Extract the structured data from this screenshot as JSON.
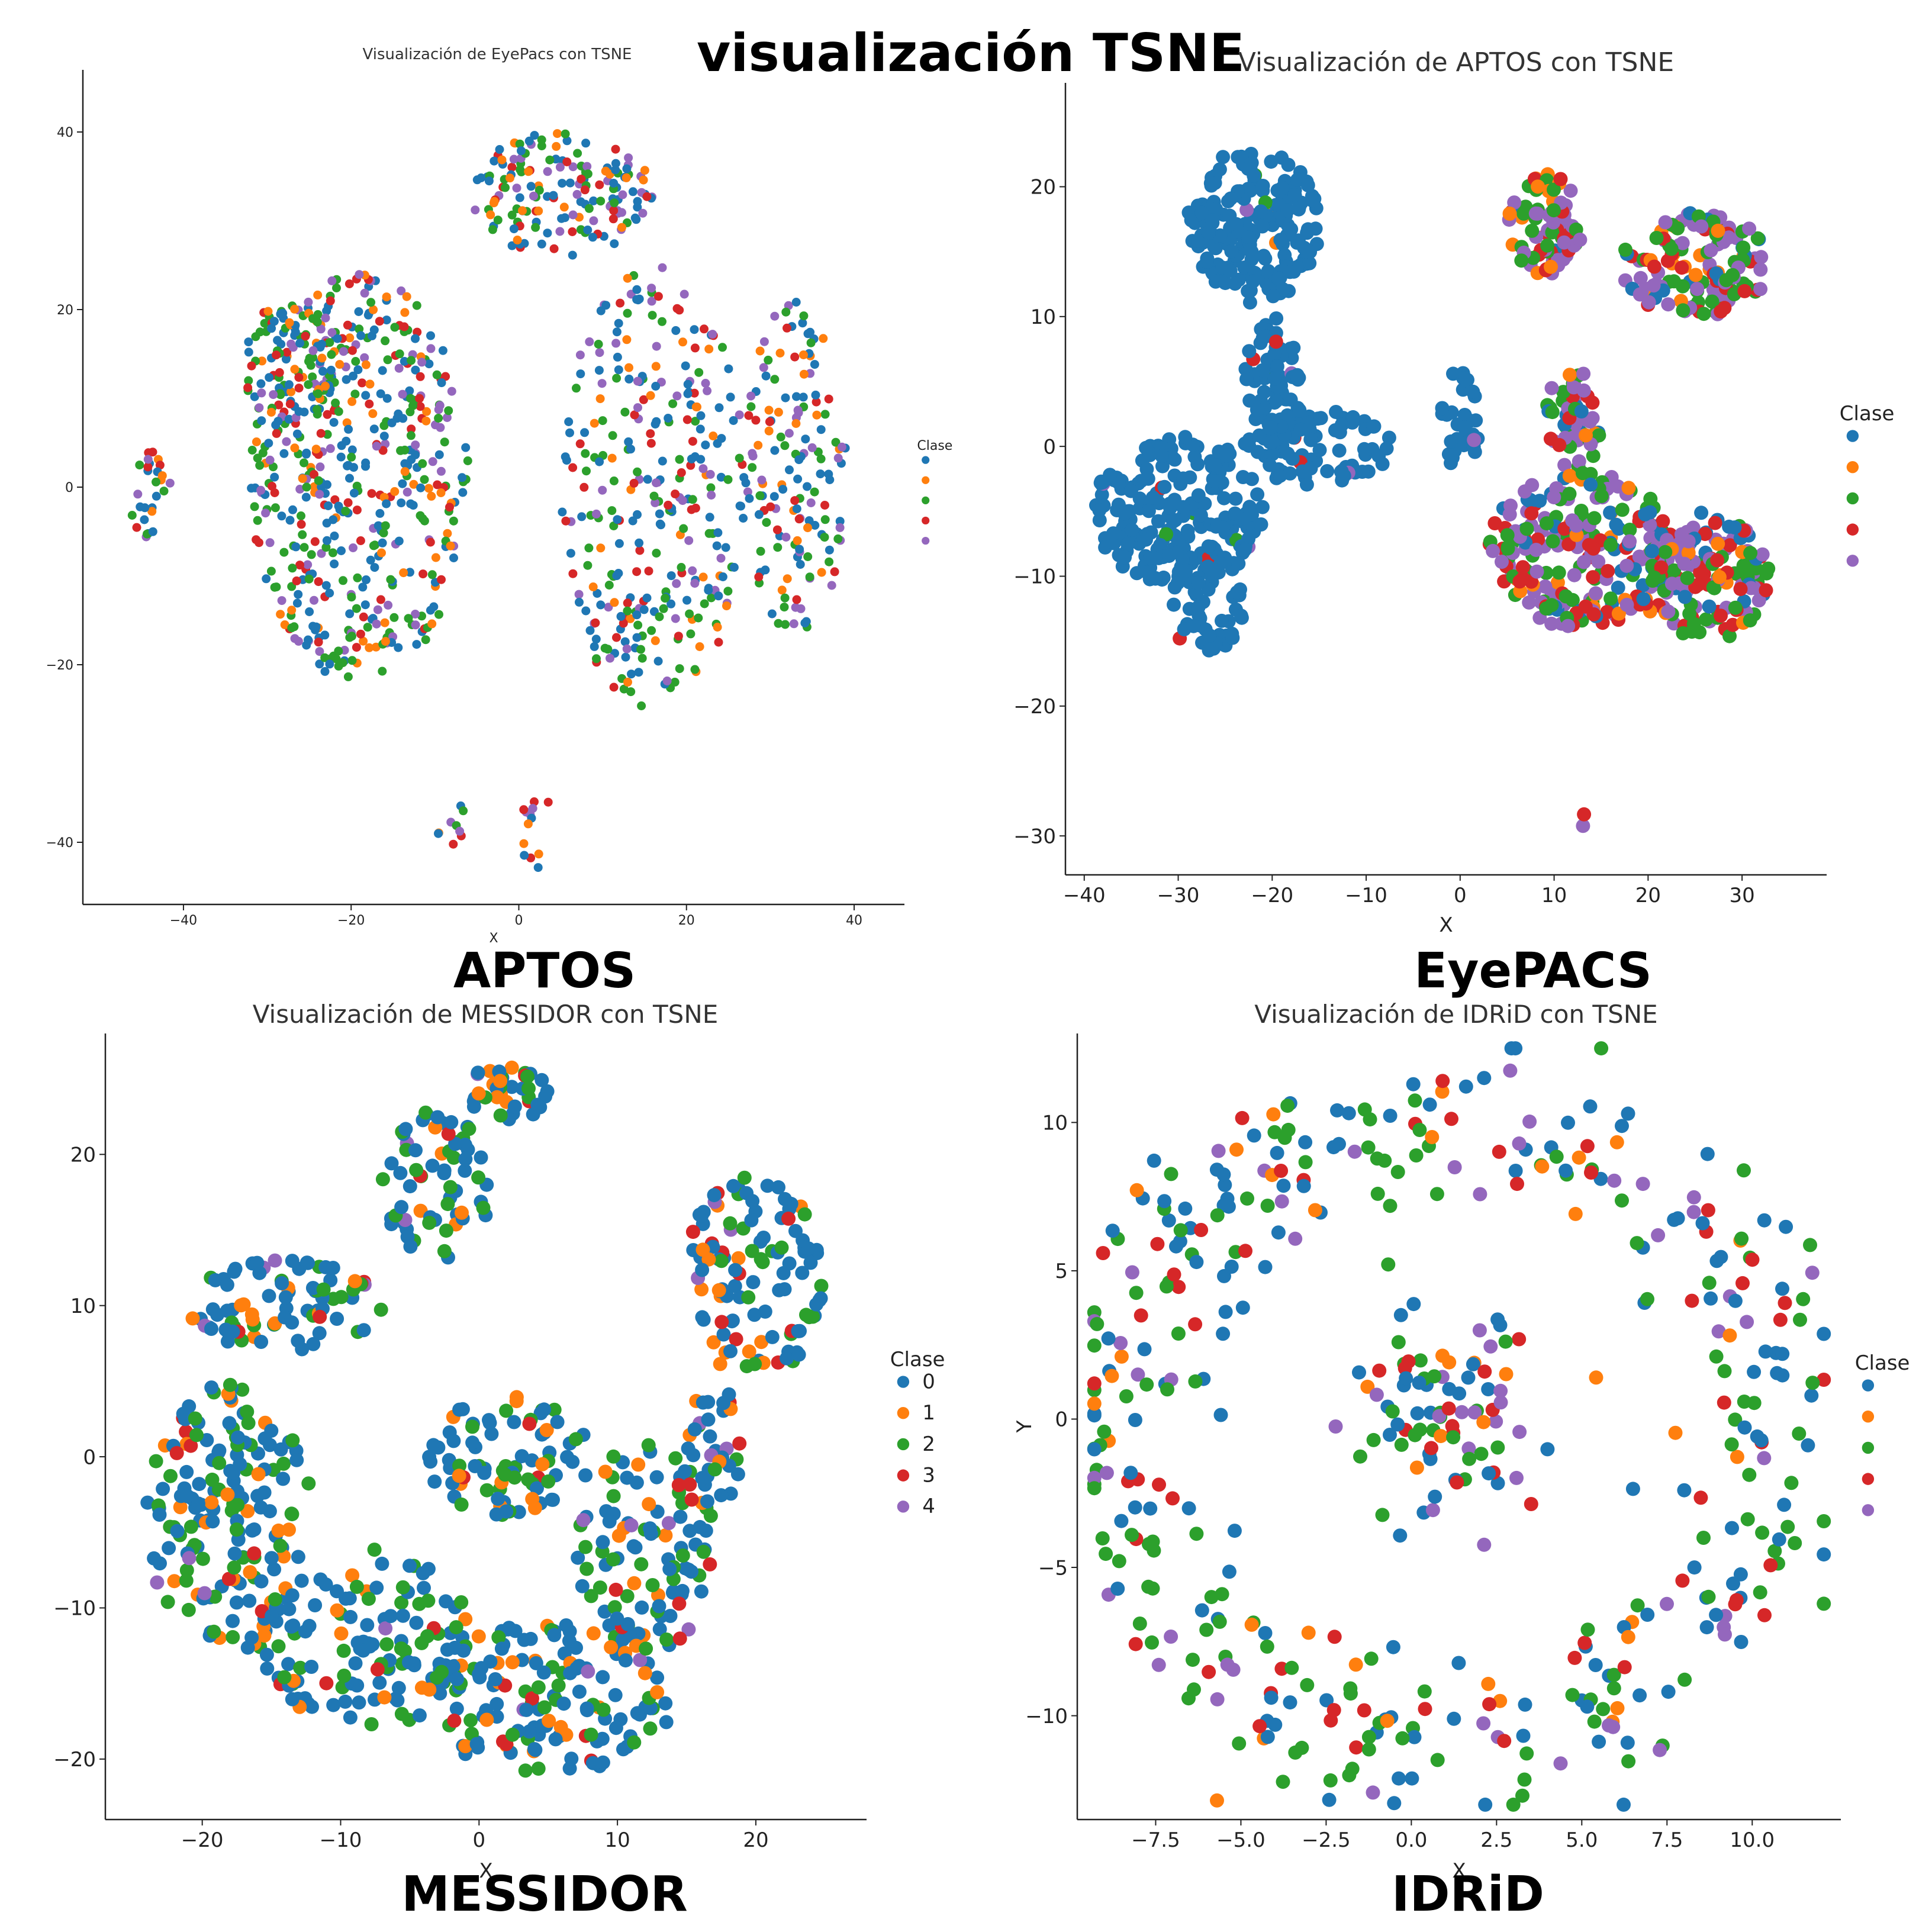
{
  "page": {
    "main_title": "visualización TSNE",
    "captions": [
      "APTOS",
      "EyePACS",
      "MESSIDOR",
      "IDRiD"
    ]
  },
  "class_colors": [
    "#1f77b4",
    "#ff7f0e",
    "#2ca02c",
    "#d62728",
    "#9467bd"
  ],
  "chart_data": [
    {
      "id": "eyepacs",
      "type": "scatter",
      "title": "Visualización de EyePacs con TSNE",
      "xlabel": "X",
      "ylabel": "",
      "xlim": [
        -52,
        46
      ],
      "ylim": [
        -47,
        47
      ],
      "xticks": [
        -40,
        -20,
        0,
        20,
        40
      ],
      "yticks": [
        -40,
        -20,
        0,
        20,
        40
      ],
      "legend": {
        "title": "Clase",
        "placement": "right",
        "labels": [
          "",
          "",
          "",
          "",
          ""
        ]
      },
      "points_per_class": [
        420,
        150,
        330,
        170,
        200
      ],
      "clusters": [
        {
          "cx": -19,
          "cy": 1,
          "rx": 13,
          "ry": 23,
          "w": 5
        },
        {
          "cx": -27,
          "cy": 14,
          "rx": 6,
          "ry": 7,
          "w": 1
        },
        {
          "cx": 16,
          "cy": 0,
          "rx": 11,
          "ry": 25,
          "w": 3
        },
        {
          "cx": 33,
          "cy": 2,
          "rx": 6,
          "ry": 19,
          "w": 1.5
        },
        {
          "cx": 5,
          "cy": 33,
          "rx": 11,
          "ry": 7,
          "w": 1.5
        },
        {
          "cx": -44,
          "cy": 0,
          "rx": 2.5,
          "ry": 6,
          "w": 0.3
        },
        {
          "cx": -8,
          "cy": -38,
          "rx": 2,
          "ry": 2.5,
          "w": 0.08
        },
        {
          "cx": 3,
          "cy": -37,
          "rx": 3,
          "ry": 2,
          "w": 0.08
        },
        {
          "cx": 2,
          "cy": -41,
          "rx": 2,
          "ry": 2,
          "w": 0.06
        }
      ]
    },
    {
      "id": "aptos",
      "type": "scatter",
      "title": "Visualización de APTOS con TSNE",
      "xlabel": "X",
      "ylabel": "",
      "xlim": [
        -42,
        39
      ],
      "ylim": [
        -33,
        28
      ],
      "xticks": [
        -40,
        -30,
        -20,
        -10,
        0,
        10,
        20,
        30
      ],
      "yticks": [
        -30,
        -20,
        -10,
        0,
        10,
        20
      ],
      "legend": {
        "title": "Clase",
        "placement": "right",
        "labels": [
          "",
          "",
          "",
          "",
          ""
        ]
      },
      "points_per_class": [
        700,
        60,
        190,
        130,
        230
      ],
      "clusters": [
        {
          "cx": -22,
          "cy": 17,
          "rx": 7,
          "ry": 6,
          "w": 2,
          "bias": 0
        },
        {
          "cx": -20,
          "cy": 5,
          "rx": 3,
          "ry": 5,
          "w": 0.6,
          "bias": 0
        },
        {
          "cx": -30,
          "cy": -5,
          "rx": 9,
          "ry": 6,
          "w": 2,
          "bias": 0
        },
        {
          "cx": -15,
          "cy": 0,
          "rx": 8,
          "ry": 3,
          "w": 1,
          "bias": 0
        },
        {
          "cx": -27,
          "cy": -12,
          "rx": 4,
          "ry": 4,
          "w": 0.6,
          "bias": 0
        },
        {
          "cx": 0,
          "cy": 2,
          "rx": 2,
          "ry": 4,
          "w": 0.3,
          "bias": 0
        },
        {
          "cx": 13,
          "cy": -8,
          "rx": 10,
          "ry": 6,
          "w": 2.5,
          "bias": 1
        },
        {
          "cx": 26,
          "cy": -10,
          "rx": 7,
          "ry": 5,
          "w": 1.5,
          "bias": 1
        },
        {
          "cx": 25,
          "cy": 14,
          "rx": 8,
          "ry": 4,
          "w": 1.5,
          "bias": 1
        },
        {
          "cx": 9,
          "cy": 17,
          "rx": 4,
          "ry": 4,
          "w": 0.8,
          "bias": 1
        },
        {
          "cx": 12,
          "cy": 2,
          "rx": 3,
          "ry": 4,
          "w": 0.5,
          "bias": 1
        },
        {
          "cx": 13,
          "cy": -29,
          "rx": 1,
          "ry": 1,
          "w": 0.05,
          "bias": 1
        }
      ]
    },
    {
      "id": "messidor",
      "type": "scatter",
      "title": "Visualización de MESSIDOR con TSNE",
      "xlabel": "X",
      "ylabel": "",
      "xlim": [
        -27,
        28
      ],
      "ylim": [
        -24,
        28
      ],
      "xticks": [
        -20,
        -10,
        0,
        10,
        20
      ],
      "yticks": [
        -20,
        -10,
        0,
        10,
        20
      ],
      "legend": {
        "title": "Clase",
        "placement": "right",
        "labels": [
          "0",
          "1",
          "2",
          "3",
          "4"
        ]
      },
      "points_per_class": [
        560,
        120,
        240,
        50,
        25
      ],
      "clusters": [
        {
          "cx": -18,
          "cy": -4,
          "rx": 6,
          "ry": 9,
          "w": 2
        },
        {
          "cx": -8,
          "cy": -12,
          "rx": 8,
          "ry": 6,
          "w": 1.5
        },
        {
          "cx": 5,
          "cy": -16,
          "rx": 9,
          "ry": 5,
          "w": 2
        },
        {
          "cx": 12,
          "cy": -6,
          "rx": 5,
          "ry": 7,
          "w": 1.2
        },
        {
          "cx": 2,
          "cy": 0,
          "rx": 6,
          "ry": 4,
          "w": 1
        },
        {
          "cx": -14,
          "cy": 10,
          "rx": 7,
          "ry": 3,
          "w": 1
        },
        {
          "cx": -3,
          "cy": 18,
          "rx": 4,
          "ry": 5,
          "w": 0.8
        },
        {
          "cx": 2,
          "cy": 24,
          "rx": 3,
          "ry": 2,
          "w": 0.4
        },
        {
          "cx": 20,
          "cy": 12,
          "rx": 5,
          "ry": 7,
          "w": 1.4
        },
        {
          "cx": 17,
          "cy": 0,
          "rx": 2,
          "ry": 5,
          "w": 0.4
        }
      ]
    },
    {
      "id": "idrid",
      "type": "scatter",
      "title": "Visualización de IDRiD con TSNE",
      "xlabel": "X",
      "ylabel": "Y",
      "xlim": [
        -9.8,
        12.6
      ],
      "ylim": [
        -13.5,
        13
      ],
      "xticks": [
        -7.5,
        -5.0,
        -2.5,
        0.0,
        2.5,
        5.0,
        7.5,
        10.0
      ],
      "yticks": [
        -10,
        -5,
        0,
        5,
        10
      ],
      "legend": {
        "title": "Clase",
        "placement": "right",
        "labels": [
          "",
          "",
          "",
          "",
          ""
        ]
      },
      "points_per_class": [
        170,
        40,
        160,
        70,
        60
      ],
      "shape": "ring",
      "ring": {
        "cx": 1,
        "cy": -0.5,
        "rx": 9.5,
        "ry": 10.5,
        "spread": 1.4,
        "inner_fraction": 0.18,
        "inner_rx": 2.5,
        "inner_ry": 3
      }
    }
  ]
}
